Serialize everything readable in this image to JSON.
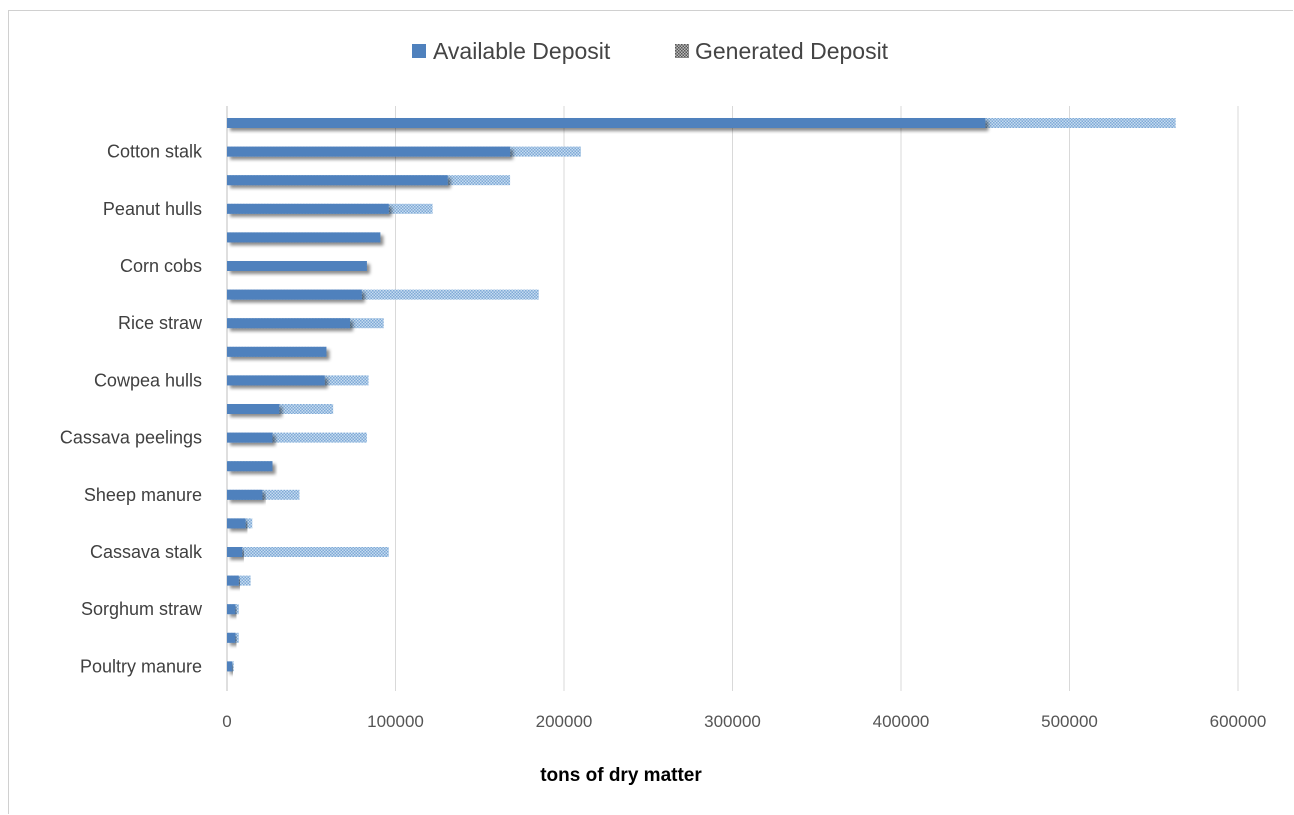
{
  "chart_data": {
    "type": "bar",
    "orientation": "horizontal",
    "title": "",
    "xlabel": "tons of dry matter",
    "ylabel": "",
    "xlim": [
      0,
      600000
    ],
    "x_ticks": [
      0,
      100000,
      200000,
      300000,
      400000,
      500000,
      600000
    ],
    "x_tick_labels": [
      "0",
      "100000",
      "200000",
      "300000",
      "400000",
      "500000",
      "600000"
    ],
    "grid": "vertical",
    "legend_position": "top",
    "categories": [
      "",
      "Cotton stalk",
      "",
      "Peanut hulls",
      "",
      "Corn cobs",
      "",
      "Rice straw",
      "",
      "Cowpea hulls",
      "",
      "Cassava peelings",
      "",
      "Sheep manure",
      "",
      "Cassava stalk",
      "",
      "Sorghum straw",
      "",
      "Poultry manure"
    ],
    "series": [
      {
        "name": "Available Deposit",
        "color": "#4f81bd",
        "values": [
          450000,
          168000,
          131000,
          96000,
          91000,
          83000,
          80000,
          73000,
          59000,
          58000,
          31000,
          27000,
          27000,
          21000,
          11000,
          9000,
          7000,
          5000,
          5000,
          3000
        ]
      },
      {
        "name": "Generated Deposit",
        "color": "#9dc3e6",
        "pattern": "dotted",
        "values": [
          563000,
          210000,
          168000,
          122000,
          91000,
          83000,
          185000,
          93000,
          59000,
          84000,
          63000,
          83000,
          27000,
          43000,
          15000,
          96000,
          14000,
          7000,
          7000,
          4000
        ]
      }
    ]
  }
}
